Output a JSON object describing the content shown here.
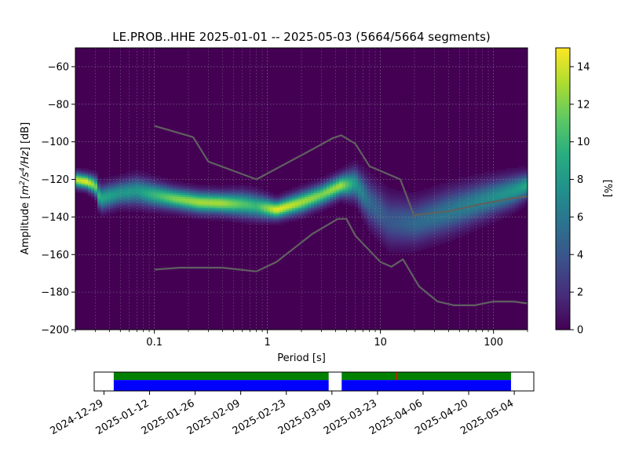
{
  "title": "LE.PROB..HHE   2025-01-01 -- 2025-05-03  (5664/5664 segments)",
  "chart_data": [
    {
      "type": "heatmap",
      "title": "LE.PROB..HHE   2025-01-01 -- 2025-05-03  (5664/5664 segments)",
      "xlabel": "Period [s]",
      "ylabel_parts": [
        "Amplitude [",
        "m",
        "2",
        "/s",
        "4",
        "/Hz",
        "] [dB]"
      ],
      "x_scale": "log",
      "xlim": [
        0.02,
        200
      ],
      "ylim": [
        -200,
        -50
      ],
      "x_ticks": [
        0.1,
        1,
        10,
        100
      ],
      "x_tick_labels": [
        "0.1",
        "1",
        "10",
        "100"
      ],
      "y_ticks": [
        -200,
        -180,
        -160,
        -140,
        -120,
        -100,
        -80,
        -60
      ],
      "y_tick_labels": [
        "−200",
        "−180",
        "−160",
        "−140",
        "−120",
        "−100",
        "−80",
        "−60"
      ],
      "grid": true,
      "colormap": "viridis",
      "background_color": "#440154",
      "colorbar": {
        "label": "[%]",
        "range": [
          0,
          15
        ],
        "ticks": [
          0,
          2,
          4,
          6,
          8,
          10,
          12,
          14
        ],
        "tick_labels": [
          "0",
          "2",
          "4",
          "6",
          "8",
          "10",
          "12",
          "14"
        ]
      },
      "density_ridge": [
        {
          "period": 0.02,
          "db": -120,
          "pct": 13.5,
          "sigma": 2.5
        },
        {
          "period": 0.025,
          "db": -121,
          "pct": 14.5,
          "sigma": 2.5
        },
        {
          "period": 0.03,
          "db": -123,
          "pct": 12,
          "sigma": 3
        },
        {
          "period": 0.033,
          "db": -130,
          "pct": 9,
          "sigma": 4
        },
        {
          "period": 0.05,
          "db": -127,
          "pct": 8,
          "sigma": 4
        },
        {
          "period": 0.07,
          "db": -126,
          "pct": 8,
          "sigma": 4.5
        },
        {
          "period": 0.1,
          "db": -128,
          "pct": 10,
          "sigma": 4
        },
        {
          "period": 0.15,
          "db": -130,
          "pct": 12,
          "sigma": 3.5
        },
        {
          "period": 0.25,
          "db": -132,
          "pct": 13,
          "sigma": 3.5
        },
        {
          "period": 0.4,
          "db": -132.5,
          "pct": 13,
          "sigma": 3.5
        },
        {
          "period": 0.6,
          "db": -133,
          "pct": 11,
          "sigma": 4
        },
        {
          "period": 0.8,
          "db": -134,
          "pct": 10,
          "sigma": 4
        },
        {
          "period": 1.2,
          "db": -136,
          "pct": 14.5,
          "sigma": 3
        },
        {
          "period": 2,
          "db": -132,
          "pct": 13,
          "sigma": 3.5
        },
        {
          "period": 3,
          "db": -128,
          "pct": 12,
          "sigma": 3.5
        },
        {
          "period": 4.5,
          "db": -123,
          "pct": 13,
          "sigma": 3.5
        },
        {
          "period": 6,
          "db": -122,
          "pct": 8,
          "sigma": 5
        },
        {
          "period": 8,
          "db": -132,
          "pct": 5,
          "sigma": 7
        },
        {
          "period": 12,
          "db": -142,
          "pct": 4,
          "sigma": 8
        },
        {
          "period": 20,
          "db": -143,
          "pct": 5,
          "sigma": 7
        },
        {
          "period": 40,
          "db": -137,
          "pct": 6,
          "sigma": 7
        },
        {
          "period": 80,
          "db": -131,
          "pct": 7,
          "sigma": 6
        },
        {
          "period": 150,
          "db": -126,
          "pct": 8,
          "sigma": 5
        },
        {
          "period": 200,
          "db": -123,
          "pct": 9,
          "sigma": 4
        }
      ],
      "series": [
        {
          "color": "#606060",
          "x": [
            0.1,
            0.22,
            0.3,
            0.8,
            2.5,
            3.8,
            4.5,
            6,
            8,
            15,
            20
          ],
          "y": [
            -91.5,
            -97.5,
            -110.5,
            -120,
            -104,
            -98,
            -96.5,
            -101,
            -113,
            -120,
            -140
          ]
        },
        {
          "color": "#606060",
          "x": [
            0.1,
            0.17,
            0.4,
            0.8,
            1.2,
            2.5,
            4.2,
            5,
            6,
            10,
            12.5,
            15.8,
            22,
            32,
            45,
            68,
            100,
            150,
            200
          ],
          "y": [
            -168,
            -167,
            -167,
            -169,
            -164,
            -149,
            -141,
            -141,
            -150,
            -164,
            -166.5,
            -162.5,
            -177,
            -185,
            -187,
            -187,
            -185,
            -185,
            -186
          ]
        },
        {
          "color": "#606060",
          "x": [
            20,
            40,
            80,
            150,
            200
          ],
          "y": [
            -139,
            -137,
            -133,
            -130,
            -129
          ]
        }
      ]
    },
    {
      "type": "timeline",
      "x_range": [
        "2024-12-26",
        "2025-05-10"
      ],
      "x_tick_labels": [
        "2024-12-29",
        "2025-01-12",
        "2025-01-26",
        "2025-02-09",
        "2025-02-23",
        "2025-03-09",
        "2025-03-23",
        "2025-04-06",
        "2025-04-20",
        "2025-05-04"
      ],
      "segments": [
        {
          "start": "2025-01-01",
          "end": "2025-03-08",
          "color": "#0000ff",
          "row": "lower"
        },
        {
          "start": "2025-01-01",
          "end": "2025-03-08",
          "color": "#008000",
          "row": "upper"
        },
        {
          "start": "2025-03-12",
          "end": "2025-05-03",
          "color": "#0000ff",
          "row": "lower"
        },
        {
          "start": "2025-03-12",
          "end": "2025-05-03",
          "color": "#008000",
          "row": "upper"
        }
      ],
      "markers": [
        {
          "date": "2025-03-29",
          "color": "#ff0000"
        }
      ]
    }
  ]
}
